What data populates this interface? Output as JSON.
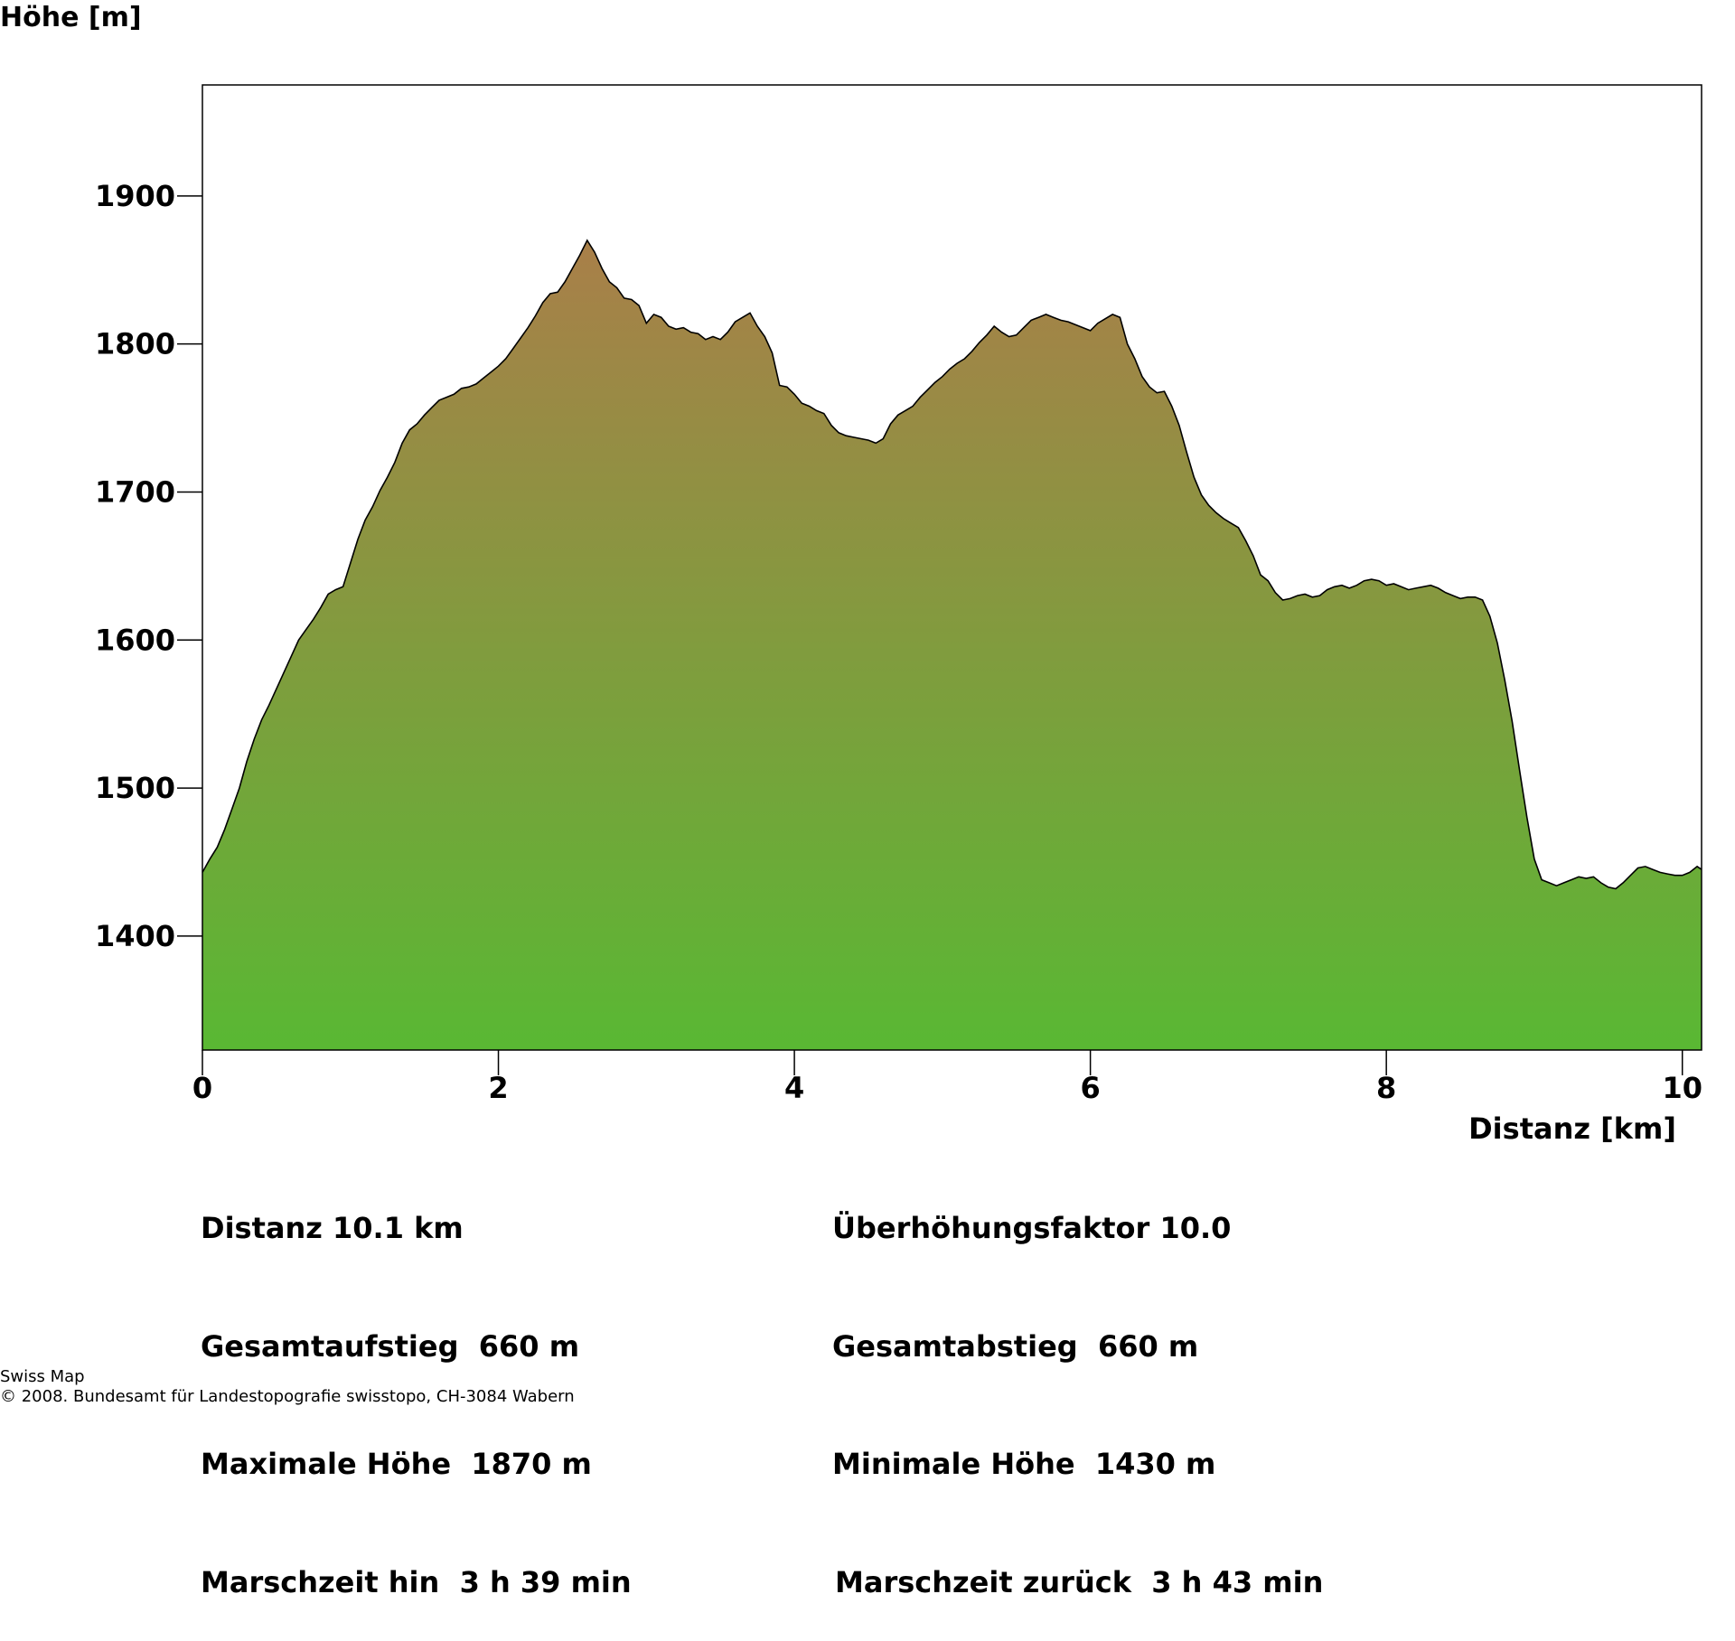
{
  "chart_data": {
    "type": "area",
    "ylabel": "Höhe [m]",
    "xlabel": "Distanz [km]",
    "xlim": [
      0,
      10.13
    ],
    "ylim": [
      1323,
      1975
    ],
    "xticks": [
      0,
      2,
      4,
      6,
      8,
      10
    ],
    "yticks": [
      1400,
      1500,
      1600,
      1700,
      1800,
      1900
    ],
    "grid": false,
    "fill_gradient": {
      "top": "#a97f49",
      "bottom": "#59b833"
    },
    "outline_color": "#000000",
    "profile": [
      [
        0.0,
        1443
      ],
      [
        0.05,
        1452
      ],
      [
        0.1,
        1460
      ],
      [
        0.15,
        1472
      ],
      [
        0.2,
        1486
      ],
      [
        0.25,
        1500
      ],
      [
        0.3,
        1518
      ],
      [
        0.35,
        1533
      ],
      [
        0.4,
        1546
      ],
      [
        0.45,
        1556
      ],
      [
        0.5,
        1567
      ],
      [
        0.55,
        1578
      ],
      [
        0.6,
        1589
      ],
      [
        0.65,
        1600
      ],
      [
        0.7,
        1607
      ],
      [
        0.75,
        1614
      ],
      [
        0.8,
        1622
      ],
      [
        0.85,
        1631
      ],
      [
        0.9,
        1634
      ],
      [
        0.95,
        1636
      ],
      [
        1.0,
        1652
      ],
      [
        1.05,
        1668
      ],
      [
        1.1,
        1681
      ],
      [
        1.15,
        1690
      ],
      [
        1.2,
        1701
      ],
      [
        1.25,
        1710
      ],
      [
        1.3,
        1720
      ],
      [
        1.35,
        1733
      ],
      [
        1.4,
        1742
      ],
      [
        1.45,
        1746
      ],
      [
        1.5,
        1752
      ],
      [
        1.55,
        1757
      ],
      [
        1.6,
        1762
      ],
      [
        1.65,
        1764
      ],
      [
        1.7,
        1766
      ],
      [
        1.75,
        1770
      ],
      [
        1.8,
        1771
      ],
      [
        1.85,
        1773
      ],
      [
        1.9,
        1777
      ],
      [
        1.95,
        1781
      ],
      [
        2.0,
        1785
      ],
      [
        2.05,
        1790
      ],
      [
        2.1,
        1797
      ],
      [
        2.15,
        1804
      ],
      [
        2.2,
        1811
      ],
      [
        2.25,
        1819
      ],
      [
        2.3,
        1828
      ],
      [
        2.35,
        1834
      ],
      [
        2.4,
        1835
      ],
      [
        2.45,
        1842
      ],
      [
        2.5,
        1851
      ],
      [
        2.55,
        1860
      ],
      [
        2.6,
        1870
      ],
      [
        2.65,
        1862
      ],
      [
        2.7,
        1851
      ],
      [
        2.75,
        1842
      ],
      [
        2.8,
        1838
      ],
      [
        2.85,
        1831
      ],
      [
        2.9,
        1830
      ],
      [
        2.95,
        1826
      ],
      [
        3.0,
        1814
      ],
      [
        3.05,
        1820
      ],
      [
        3.1,
        1818
      ],
      [
        3.15,
        1812
      ],
      [
        3.2,
        1810
      ],
      [
        3.25,
        1811
      ],
      [
        3.3,
        1808
      ],
      [
        3.35,
        1807
      ],
      [
        3.4,
        1803
      ],
      [
        3.45,
        1805
      ],
      [
        3.5,
        1803
      ],
      [
        3.55,
        1808
      ],
      [
        3.6,
        1815
      ],
      [
        3.65,
        1818
      ],
      [
        3.7,
        1821
      ],
      [
        3.75,
        1812
      ],
      [
        3.8,
        1805
      ],
      [
        3.85,
        1794
      ],
      [
        3.9,
        1772
      ],
      [
        3.95,
        1771
      ],
      [
        4.0,
        1766
      ],
      [
        4.05,
        1760
      ],
      [
        4.1,
        1758
      ],
      [
        4.15,
        1755
      ],
      [
        4.2,
        1753
      ],
      [
        4.25,
        1745
      ],
      [
        4.3,
        1740
      ],
      [
        4.35,
        1738
      ],
      [
        4.4,
        1737
      ],
      [
        4.45,
        1736
      ],
      [
        4.5,
        1735
      ],
      [
        4.55,
        1733
      ],
      [
        4.6,
        1736
      ],
      [
        4.65,
        1746
      ],
      [
        4.7,
        1752
      ],
      [
        4.75,
        1755
      ],
      [
        4.8,
        1758
      ],
      [
        4.85,
        1764
      ],
      [
        4.9,
        1769
      ],
      [
        4.95,
        1774
      ],
      [
        5.0,
        1778
      ],
      [
        5.05,
        1783
      ],
      [
        5.1,
        1787
      ],
      [
        5.15,
        1790
      ],
      [
        5.2,
        1795
      ],
      [
        5.25,
        1801
      ],
      [
        5.3,
        1806
      ],
      [
        5.35,
        1812
      ],
      [
        5.4,
        1808
      ],
      [
        5.45,
        1805
      ],
      [
        5.5,
        1806
      ],
      [
        5.55,
        1811
      ],
      [
        5.6,
        1816
      ],
      [
        5.65,
        1818
      ],
      [
        5.7,
        1820
      ],
      [
        5.75,
        1818
      ],
      [
        5.8,
        1816
      ],
      [
        5.85,
        1815
      ],
      [
        5.9,
        1813
      ],
      [
        5.95,
        1811
      ],
      [
        6.0,
        1809
      ],
      [
        6.05,
        1814
      ],
      [
        6.1,
        1817
      ],
      [
        6.15,
        1820
      ],
      [
        6.2,
        1818
      ],
      [
        6.25,
        1800
      ],
      [
        6.3,
        1790
      ],
      [
        6.35,
        1778
      ],
      [
        6.4,
        1771
      ],
      [
        6.45,
        1767
      ],
      [
        6.5,
        1768
      ],
      [
        6.55,
        1758
      ],
      [
        6.6,
        1745
      ],
      [
        6.65,
        1727
      ],
      [
        6.7,
        1710
      ],
      [
        6.75,
        1698
      ],
      [
        6.8,
        1691
      ],
      [
        6.85,
        1686
      ],
      [
        6.9,
        1682
      ],
      [
        6.95,
        1679
      ],
      [
        7.0,
        1676
      ],
      [
        7.05,
        1667
      ],
      [
        7.1,
        1657
      ],
      [
        7.15,
        1644
      ],
      [
        7.2,
        1640
      ],
      [
        7.25,
        1632
      ],
      [
        7.3,
        1627
      ],
      [
        7.35,
        1628
      ],
      [
        7.4,
        1630
      ],
      [
        7.45,
        1631
      ],
      [
        7.5,
        1629
      ],
      [
        7.55,
        1630
      ],
      [
        7.6,
        1634
      ],
      [
        7.65,
        1636
      ],
      [
        7.7,
        1637
      ],
      [
        7.75,
        1635
      ],
      [
        7.8,
        1637
      ],
      [
        7.85,
        1640
      ],
      [
        7.9,
        1641
      ],
      [
        7.95,
        1640
      ],
      [
        8.0,
        1637
      ],
      [
        8.05,
        1638
      ],
      [
        8.1,
        1636
      ],
      [
        8.15,
        1634
      ],
      [
        8.2,
        1635
      ],
      [
        8.25,
        1636
      ],
      [
        8.3,
        1637
      ],
      [
        8.35,
        1635
      ],
      [
        8.4,
        1632
      ],
      [
        8.45,
        1630
      ],
      [
        8.5,
        1628
      ],
      [
        8.55,
        1629
      ],
      [
        8.6,
        1629
      ],
      [
        8.65,
        1627
      ],
      [
        8.7,
        1616
      ],
      [
        8.75,
        1598
      ],
      [
        8.8,
        1573
      ],
      [
        8.85,
        1545
      ],
      [
        8.9,
        1512
      ],
      [
        8.95,
        1480
      ],
      [
        9.0,
        1452
      ],
      [
        9.05,
        1438
      ],
      [
        9.1,
        1436
      ],
      [
        9.15,
        1434
      ],
      [
        9.2,
        1436
      ],
      [
        9.25,
        1438
      ],
      [
        9.3,
        1440
      ],
      [
        9.35,
        1439
      ],
      [
        9.4,
        1440
      ],
      [
        9.45,
        1436
      ],
      [
        9.5,
        1433
      ],
      [
        9.55,
        1432
      ],
      [
        9.6,
        1436
      ],
      [
        9.65,
        1441
      ],
      [
        9.7,
        1446
      ],
      [
        9.75,
        1447
      ],
      [
        9.8,
        1445
      ],
      [
        9.85,
        1443
      ],
      [
        9.9,
        1442
      ],
      [
        9.95,
        1441
      ],
      [
        10.0,
        1441
      ],
      [
        10.05,
        1443
      ],
      [
        10.1,
        1447
      ],
      [
        10.13,
        1445
      ]
    ]
  },
  "stats": {
    "left": [
      "Distanz 10.1 km",
      "Gesamtaufstieg  660 m",
      "Maximale Höhe  1870 m",
      "Marschzeit hin  3 h 39 min"
    ],
    "right": [
      "Überhöhungsfaktor 10.0",
      "Gesamtabstieg  660 m",
      "Minimale Höhe  1430 m",
      "Marschzeit zurück  3 h 43 min"
    ]
  },
  "footer": {
    "line1": "Swiss Map",
    "line2": "© 2008. Bundesamt für Landestopografie swisstopo, CH-3084 Wabern"
  }
}
